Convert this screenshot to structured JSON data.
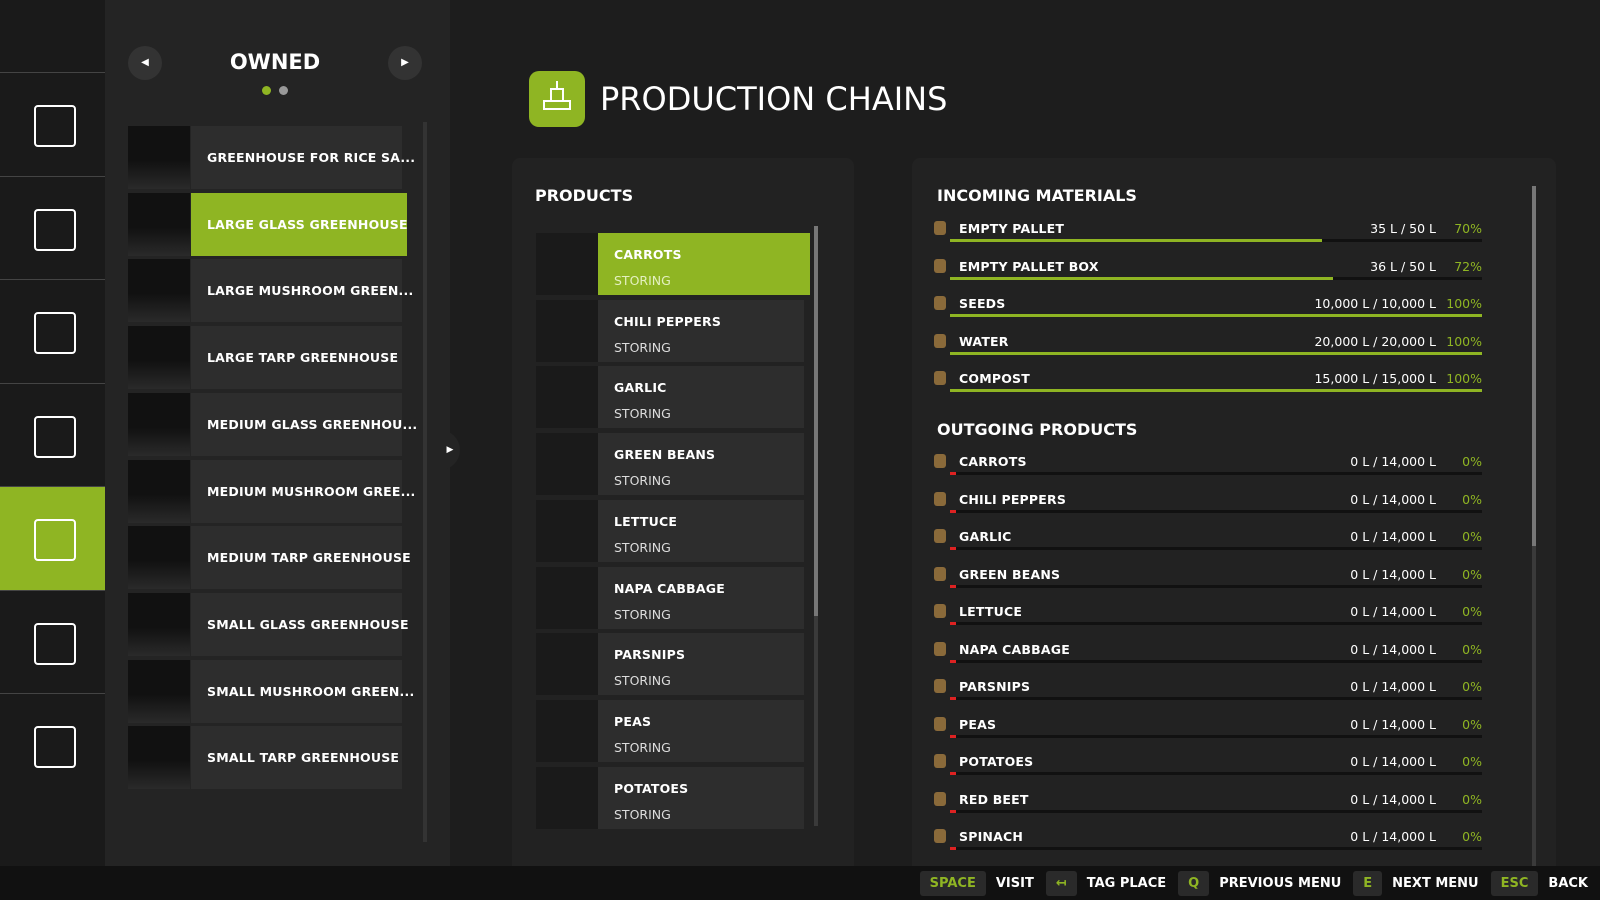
{
  "header": {
    "owned_title": "OWNED",
    "title": "PRODUCTION CHAINS"
  },
  "owned": [
    "GREENHOUSE FOR RICE SA...",
    "LARGE GLASS GREENHOUSE",
    "LARGE MUSHROOM GREEN...",
    "LARGE TARP GREENHOUSE",
    "MEDIUM GLASS GREENHOU...",
    "MEDIUM MUSHROOM GREE...",
    "MEDIUM TARP GREENHOUSE",
    "SMALL GLASS GREENHOUSE",
    "SMALL MUSHROOM GREEN...",
    "SMALL TARP GREENHOUSE"
  ],
  "products": {
    "title": "PRODUCTS",
    "items": [
      {
        "name": "CARROTS",
        "status": "STORING"
      },
      {
        "name": "CHILI PEPPERS",
        "status": "STORING"
      },
      {
        "name": "GARLIC",
        "status": "STORING"
      },
      {
        "name": "GREEN BEANS",
        "status": "STORING"
      },
      {
        "name": "LETTUCE",
        "status": "STORING"
      },
      {
        "name": "NAPA CABBAGE",
        "status": "STORING"
      },
      {
        "name": "PARSNIPS",
        "status": "STORING"
      },
      {
        "name": "PEAS",
        "status": "STORING"
      },
      {
        "name": "POTATOES",
        "status": "STORING"
      }
    ]
  },
  "incoming": {
    "title": "INCOMING MATERIALS",
    "items": [
      {
        "name": "EMPTY PALLET",
        "amount": "35 L / 50 L",
        "fill": 70,
        "fill_label": "70%"
      },
      {
        "name": "EMPTY PALLET BOX",
        "amount": "36 L / 50 L",
        "fill": 72,
        "fill_label": "72%"
      },
      {
        "name": "SEEDS",
        "amount": "10,000 L / 10,000 L",
        "fill": 100,
        "fill_label": "100%"
      },
      {
        "name": "WATER",
        "amount": "20,000 L / 20,000 L",
        "fill": 100,
        "fill_label": "100%"
      },
      {
        "name": "COMPOST",
        "amount": "15,000 L / 15,000 L",
        "fill": 100,
        "fill_label": "100%"
      }
    ]
  },
  "outgoing": {
    "title": "OUTGOING PRODUCTS",
    "items": [
      {
        "name": "CARROTS",
        "amount": "0 L / 14,000 L",
        "fill": 0,
        "fill_label": "0%"
      },
      {
        "name": "CHILI PEPPERS",
        "amount": "0 L / 14,000 L",
        "fill": 0,
        "fill_label": "0%"
      },
      {
        "name": "GARLIC",
        "amount": "0 L / 14,000 L",
        "fill": 0,
        "fill_label": "0%"
      },
      {
        "name": "GREEN BEANS",
        "amount": "0 L / 14,000 L",
        "fill": 0,
        "fill_label": "0%"
      },
      {
        "name": "LETTUCE",
        "amount": "0 L / 14,000 L",
        "fill": 0,
        "fill_label": "0%"
      },
      {
        "name": "NAPA CABBAGE",
        "amount": "0 L / 14,000 L",
        "fill": 0,
        "fill_label": "0%"
      },
      {
        "name": "PARSNIPS",
        "amount": "0 L / 14,000 L",
        "fill": 0,
        "fill_label": "0%"
      },
      {
        "name": "PEAS",
        "amount": "0 L / 14,000 L",
        "fill": 0,
        "fill_label": "0%"
      },
      {
        "name": "POTATOES",
        "amount": "0 L / 14,000 L",
        "fill": 0,
        "fill_label": "0%"
      },
      {
        "name": "RED BEET",
        "amount": "0 L / 14,000 L",
        "fill": 0,
        "fill_label": "0%"
      },
      {
        "name": "SPINACH",
        "amount": "0 L / 14,000 L",
        "fill": 0,
        "fill_label": "0%"
      }
    ]
  },
  "footer": [
    {
      "key": "SPACE",
      "action": "VISIT"
    },
    {
      "key": "↤",
      "action": "TAG PLACE"
    },
    {
      "key": "Q",
      "action": "PREVIOUS MENU"
    },
    {
      "key": "E",
      "action": "NEXT MENU"
    },
    {
      "key": "ESC",
      "action": "BACK"
    }
  ]
}
